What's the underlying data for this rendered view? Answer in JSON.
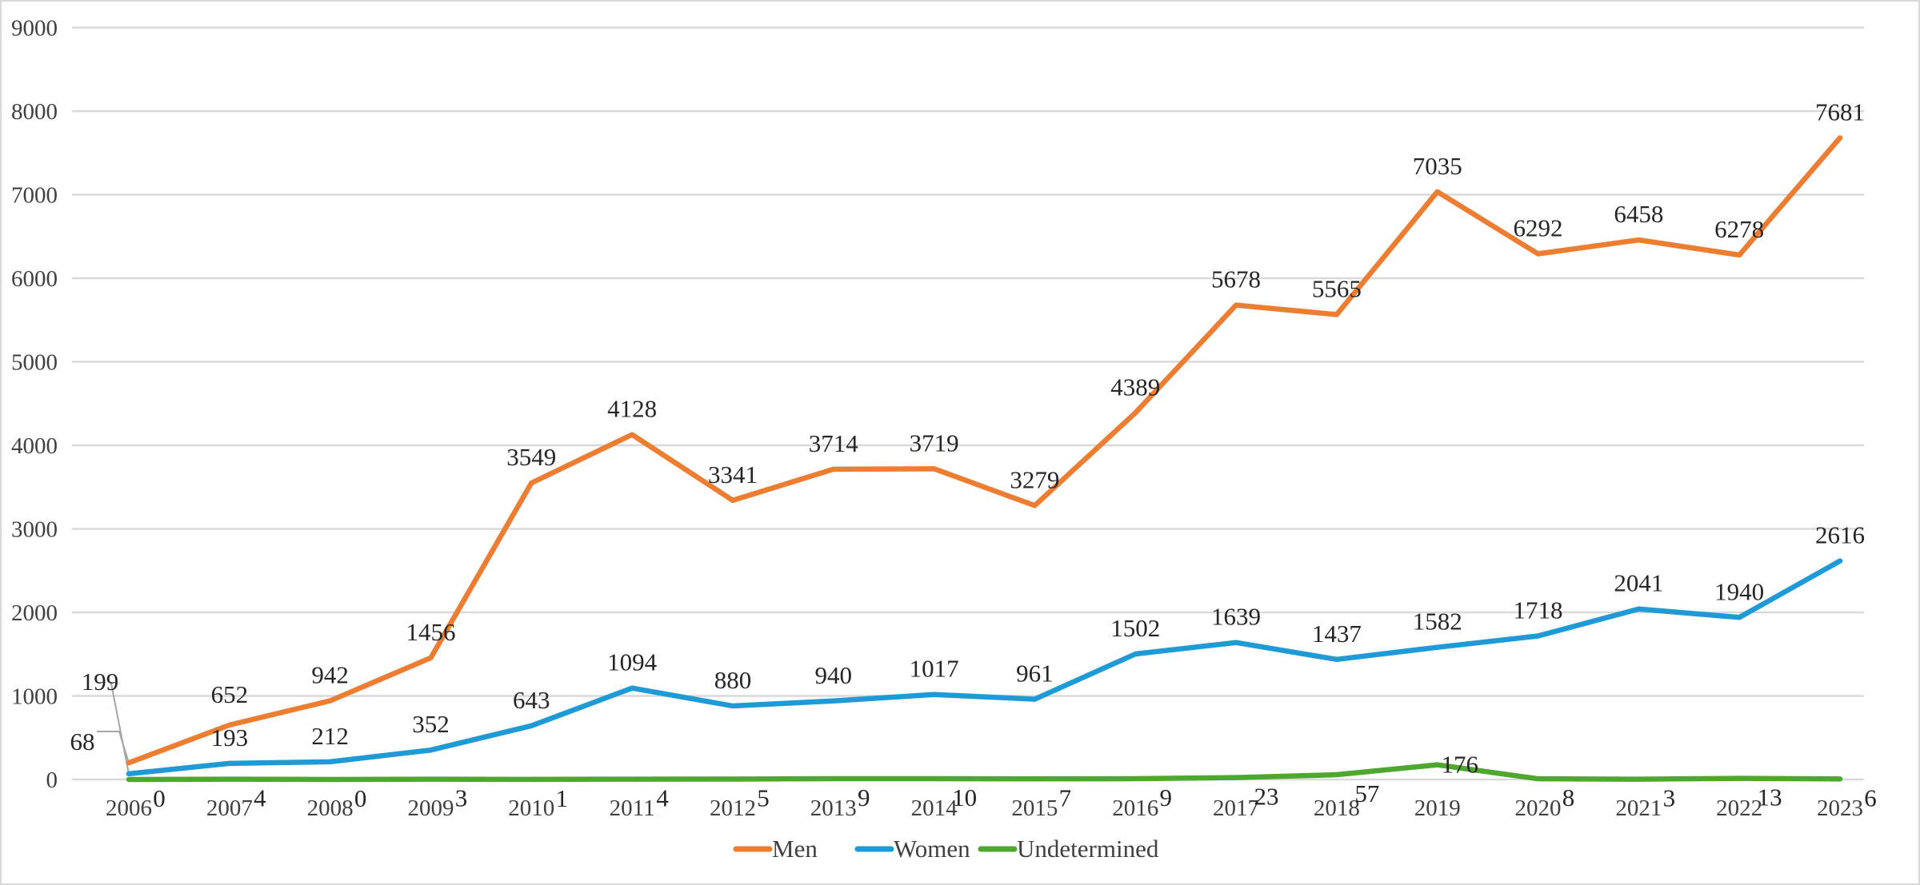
{
  "chart_data": {
    "type": "line",
    "title": "",
    "xlabel": "",
    "ylabel": "",
    "x": [
      "2006",
      "2007",
      "2008",
      "2009",
      "2010",
      "2011",
      "2012",
      "2013",
      "2014",
      "2015",
      "2016",
      "2017",
      "2018",
      "2019",
      "2020",
      "2021",
      "2022",
      "2023"
    ],
    "ylim": [
      0,
      9000
    ],
    "yticks": [
      "0",
      "1000",
      "2000",
      "3000",
      "4000",
      "5000",
      "6000",
      "7000",
      "8000",
      "9000"
    ],
    "grid": true,
    "legend_position": "bottom",
    "series": [
      {
        "name": "Men",
        "color": "#ED7D31",
        "values": [
          199,
          652,
          942,
          1456,
          3549,
          4128,
          3341,
          3714,
          3719,
          3279,
          4389,
          5678,
          5565,
          7035,
          6292,
          6458,
          6278,
          7681
        ]
      },
      {
        "name": "Women",
        "color": "#1E9BD7",
        "values": [
          68,
          193,
          212,
          352,
          643,
          1094,
          880,
          940,
          1017,
          961,
          1502,
          1639,
          1437,
          1582,
          1718,
          2041,
          1940,
          2616
        ]
      },
      {
        "name": "Undetermined",
        "color": "#4EA72E",
        "values": [
          0,
          4,
          0,
          3,
          1,
          4,
          5,
          9,
          10,
          7,
          9,
          23,
          57,
          176,
          8,
          3,
          13,
          6
        ]
      }
    ]
  }
}
